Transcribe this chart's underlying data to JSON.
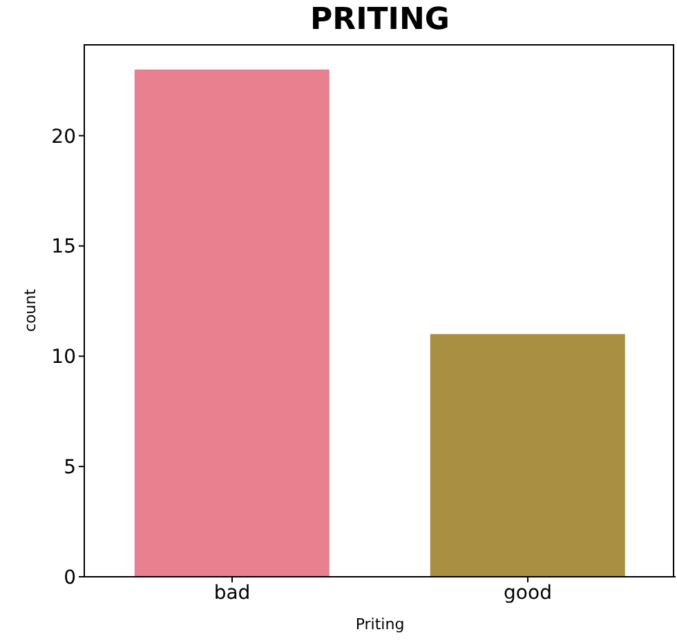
{
  "chart_data": {
    "type": "bar",
    "title": "PRITING",
    "xlabel": "Priting",
    "ylabel": "count",
    "categories": [
      "bad",
      "good"
    ],
    "values": [
      23,
      11
    ],
    "colors": [
      "#e8808f",
      "#a98f41"
    ],
    "ylim": [
      0,
      24.15
    ],
    "yticks": [
      0,
      5,
      10,
      15,
      20
    ],
    "grid": false,
    "legend": false
  }
}
